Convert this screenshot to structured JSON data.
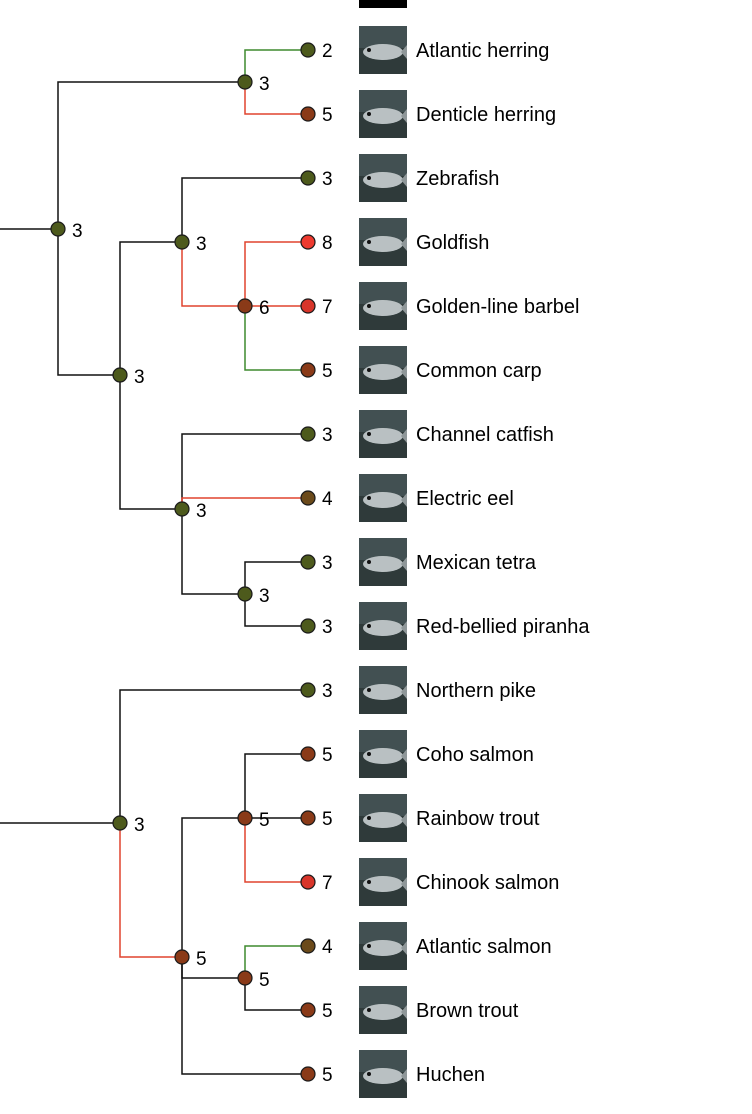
{
  "colors": {
    "branch_default": "#111111",
    "branch_increase": "#e0432e",
    "branch_decrease": "#3f8a2e",
    "node_level_2": "#4d5a1c",
    "node_level_3": "#4d5a1c",
    "node_level_4": "#6b4a1a",
    "node_level_5": "#8a3a18",
    "node_level_6": "#8a3a18",
    "node_level_7": "#d8352a",
    "node_level_8": "#ee3a2f"
  },
  "leaves": [
    {
      "name": "Atlantic herring",
      "value": 2,
      "icon": "fish-thumbnail-icon"
    },
    {
      "name": "Denticle herring",
      "value": 5,
      "icon": "fish-thumbnail-icon"
    },
    {
      "name": "Zebrafish",
      "value": 3,
      "icon": "fish-thumbnail-icon"
    },
    {
      "name": "Goldfish",
      "value": 8,
      "icon": "fish-thumbnail-icon"
    },
    {
      "name": "Golden-line barbel",
      "value": 7,
      "icon": "fish-thumbnail-icon"
    },
    {
      "name": "Common carp",
      "value": 5,
      "icon": "fish-thumbnail-icon"
    },
    {
      "name": "Channel catfish",
      "value": 3,
      "icon": "fish-thumbnail-icon"
    },
    {
      "name": "Electric eel",
      "value": 4,
      "icon": "fish-thumbnail-icon"
    },
    {
      "name": "Mexican tetra",
      "value": 3,
      "icon": "fish-thumbnail-icon"
    },
    {
      "name": "Red-bellied piranha",
      "value": 3,
      "icon": "fish-thumbnail-icon"
    },
    {
      "name": "Northern pike",
      "value": 3,
      "icon": "fish-thumbnail-icon"
    },
    {
      "name": "Coho salmon",
      "value": 5,
      "icon": "fish-thumbnail-icon"
    },
    {
      "name": "Rainbow trout",
      "value": 5,
      "icon": "fish-thumbnail-icon"
    },
    {
      "name": "Chinook salmon",
      "value": 7,
      "icon": "fish-thumbnail-icon"
    },
    {
      "name": "Atlantic salmon",
      "value": 4,
      "icon": "fish-thumbnail-icon"
    },
    {
      "name": "Brown trout",
      "value": 5,
      "icon": "fish-thumbnail-icon"
    },
    {
      "name": "Huchen",
      "value": 5,
      "icon": "fish-thumbnail-icon"
    }
  ],
  "internal_nodes": [
    {
      "id": "herrings",
      "value": 3
    },
    {
      "id": "cyprinids",
      "value": 3
    },
    {
      "id": "carp-group",
      "value": 6
    },
    {
      "id": "otophysi",
      "value": 3
    },
    {
      "id": "characiphysi",
      "value": 3
    },
    {
      "id": "characiforms",
      "value": 3
    },
    {
      "id": "ostariophysi-root",
      "value": 3
    },
    {
      "id": "euteleost-root",
      "value": 3
    },
    {
      "id": "salmonids",
      "value": 5
    },
    {
      "id": "oncorhynchus",
      "value": 5
    },
    {
      "id": "salmo",
      "value": 5
    }
  ]
}
